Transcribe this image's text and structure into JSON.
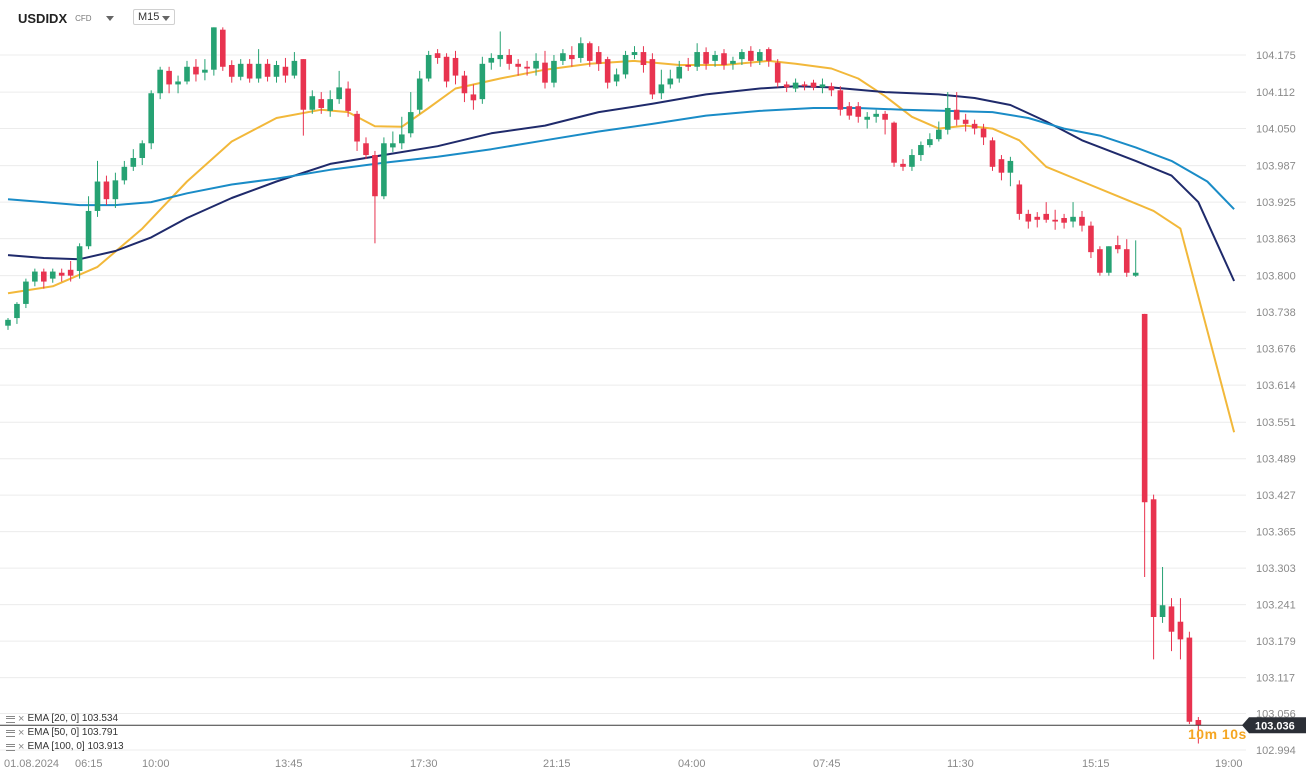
{
  "header": {
    "symbol": "USDIDX",
    "instrument_type": "CFD",
    "timeframe": "M15"
  },
  "legend": [
    {
      "label": "EMA [20, 0] 103.534",
      "color": "#f2b83a"
    },
    {
      "label": "EMA [50, 0] 103.791",
      "color": "#1f2a6b"
    },
    {
      "label": "EMA [100, 0] 103.913",
      "color": "#1a8cc7"
    }
  ],
  "countdown": "10m 10s",
  "colors": {
    "up": "#26a273",
    "down": "#e8334f",
    "price_tag_bg": "#2b2f36",
    "grid": "#ececec",
    "axis_text": "#8a8a8a"
  },
  "chart_data": {
    "type": "candlestick",
    "title": "USDIDX",
    "timeframe": "M15",
    "y_axis": {
      "ticks": [
        "104.175",
        "104.112",
        "104.050",
        "103.987",
        "103.925",
        "103.863",
        "103.800",
        "103.738",
        "103.676",
        "103.614",
        "103.551",
        "103.489",
        "103.427",
        "103.365",
        "103.303",
        "103.241",
        "103.179",
        "103.117",
        "103.056",
        "102.994"
      ],
      "range": [
        102.985,
        104.225
      ]
    },
    "x_axis": {
      "ticks": [
        "01.08.2024",
        "06:15",
        "10:00",
        "13:45",
        "17:30",
        "21:15",
        "04:00",
        "07:45",
        "11:30",
        "15:15",
        "19:00"
      ]
    },
    "last_price": "103.036",
    "candles": [
      [
        103.715,
        103.725,
        103.708,
        103.728
      ],
      [
        103.728,
        103.752,
        103.718,
        103.755
      ],
      [
        103.752,
        103.79,
        103.745,
        103.795
      ],
      [
        103.79,
        103.807,
        103.782,
        103.812
      ],
      [
        103.807,
        103.79,
        103.778,
        103.812
      ],
      [
        103.795,
        103.807,
        103.788,
        103.812
      ],
      [
        103.805,
        103.8,
        103.79,
        103.812
      ],
      [
        103.81,
        103.8,
        103.79,
        103.825
      ],
      [
        103.808,
        103.85,
        103.795,
        103.855
      ],
      [
        103.85,
        103.91,
        103.845,
        103.935
      ],
      [
        103.91,
        103.96,
        103.9,
        103.995
      ],
      [
        103.96,
        103.93,
        103.92,
        103.97
      ],
      [
        103.93,
        103.962,
        103.915,
        103.975
      ],
      [
        103.962,
        103.985,
        103.955,
        103.995
      ],
      [
        103.985,
        104.0,
        103.978,
        104.015
      ],
      [
        104.0,
        104.025,
        103.988,
        104.03
      ],
      [
        104.025,
        104.11,
        104.015,
        104.115
      ],
      [
        104.11,
        104.15,
        104.1,
        104.155
      ],
      [
        104.148,
        104.125,
        104.11,
        104.155
      ],
      [
        104.125,
        104.13,
        104.11,
        104.14
      ],
      [
        104.13,
        104.155,
        104.125,
        104.165
      ],
      [
        104.155,
        104.142,
        104.13,
        104.168
      ],
      [
        104.145,
        104.15,
        104.132,
        104.168
      ],
      [
        104.15,
        104.222,
        104.14,
        104.222
      ],
      [
        104.218,
        104.155,
        104.148,
        104.222
      ],
      [
        104.158,
        104.138,
        104.128,
        104.166
      ],
      [
        104.138,
        104.16,
        104.132,
        104.168
      ],
      [
        104.16,
        104.135,
        104.128,
        104.168
      ],
      [
        104.135,
        104.16,
        104.128,
        104.185
      ],
      [
        104.16,
        104.138,
        104.13,
        104.168
      ],
      [
        104.138,
        104.158,
        104.128,
        104.165
      ],
      [
        104.155,
        104.14,
        104.128,
        104.17
      ],
      [
        104.14,
        104.165,
        104.135,
        104.18
      ],
      [
        104.168,
        104.082,
        104.038,
        104.168
      ],
      [
        104.082,
        104.105,
        104.075,
        104.115
      ],
      [
        104.1,
        104.085,
        104.075,
        104.112
      ],
      [
        104.08,
        104.1,
        104.07,
        104.115
      ],
      [
        104.1,
        104.12,
        104.092,
        104.148
      ],
      [
        104.118,
        104.08,
        104.07,
        104.13
      ],
      [
        104.075,
        104.028,
        104.012,
        104.08
      ],
      [
        104.025,
        104.005,
        103.998,
        104.035
      ],
      [
        104.005,
        103.935,
        103.855,
        104.012
      ],
      [
        103.935,
        104.025,
        103.93,
        104.035
      ],
      [
        104.018,
        104.025,
        104.01,
        104.045
      ],
      [
        104.025,
        104.04,
        104.015,
        104.07
      ],
      [
        104.042,
        104.078,
        104.035,
        104.112
      ],
      [
        104.082,
        104.135,
        104.075,
        104.148
      ],
      [
        104.135,
        104.175,
        104.13,
        104.182
      ],
      [
        104.178,
        104.17,
        104.16,
        104.185
      ],
      [
        104.172,
        104.13,
        104.12,
        104.178
      ],
      [
        104.17,
        104.14,
        104.125,
        104.182
      ],
      [
        104.14,
        104.11,
        104.095,
        104.148
      ],
      [
        104.108,
        104.098,
        104.082,
        104.125
      ],
      [
        104.1,
        104.16,
        104.092,
        104.172
      ],
      [
        104.162,
        104.17,
        104.15,
        104.178
      ],
      [
        104.168,
        104.175,
        104.155,
        104.215
      ],
      [
        104.175,
        104.16,
        104.15,
        104.185
      ],
      [
        104.16,
        104.155,
        104.14,
        104.168
      ],
      [
        104.155,
        104.152,
        104.14,
        104.165
      ],
      [
        104.152,
        104.165,
        104.14,
        104.178
      ],
      [
        104.162,
        104.128,
        104.118,
        104.182
      ],
      [
        104.128,
        104.165,
        104.12,
        104.175
      ],
      [
        104.165,
        104.178,
        104.158,
        104.185
      ],
      [
        104.175,
        104.168,
        104.155,
        104.19
      ],
      [
        104.17,
        104.195,
        104.162,
        104.205
      ],
      [
        104.195,
        104.165,
        104.155,
        104.198
      ],
      [
        104.18,
        104.16,
        104.148,
        104.19
      ],
      [
        104.168,
        104.128,
        104.118,
        104.172
      ],
      [
        104.13,
        104.142,
        104.122,
        104.152
      ],
      [
        104.142,
        104.175,
        104.135,
        104.182
      ],
      [
        104.175,
        104.18,
        104.168,
        104.19
      ],
      [
        104.18,
        104.158,
        104.145,
        104.19
      ],
      [
        104.168,
        104.108,
        104.1,
        104.178
      ],
      [
        104.11,
        104.125,
        104.1,
        104.15
      ],
      [
        104.125,
        104.135,
        104.118,
        104.15
      ],
      [
        104.135,
        104.155,
        104.128,
        104.165
      ],
      [
        104.158,
        104.155,
        104.148,
        104.17
      ],
      [
        104.155,
        104.18,
        104.148,
        104.195
      ],
      [
        104.18,
        104.16,
        104.15,
        104.188
      ],
      [
        104.165,
        104.175,
        104.155,
        104.182
      ],
      [
        104.178,
        104.158,
        104.15,
        104.185
      ],
      [
        104.16,
        104.165,
        104.15,
        104.172
      ],
      [
        104.168,
        104.18,
        104.158,
        104.185
      ],
      [
        104.182,
        104.165,
        104.155,
        104.19
      ],
      [
        104.165,
        104.18,
        104.158,
        104.185
      ],
      [
        104.185,
        104.165,
        104.155,
        104.188
      ],
      [
        104.162,
        104.128,
        104.12,
        104.168
      ],
      [
        104.125,
        104.12,
        104.112,
        104.13
      ],
      [
        104.118,
        104.128,
        104.112,
        104.135
      ],
      [
        104.125,
        104.122,
        104.115,
        104.13
      ],
      [
        104.128,
        104.12,
        104.115,
        104.133
      ],
      [
        104.12,
        104.125,
        104.11,
        104.135
      ],
      [
        104.122,
        104.115,
        104.105,
        104.128
      ],
      [
        104.115,
        104.082,
        104.072,
        104.122
      ],
      [
        104.088,
        104.072,
        104.065,
        104.095
      ],
      [
        104.088,
        104.07,
        104.06,
        104.095
      ],
      [
        104.065,
        104.07,
        104.05,
        104.078
      ],
      [
        104.07,
        104.075,
        104.06,
        104.082
      ],
      [
        104.075,
        104.065,
        104.04,
        104.08
      ],
      [
        104.06,
        103.992,
        103.985,
        104.062
      ],
      [
        103.99,
        103.985,
        103.978,
        103.998
      ],
      [
        103.985,
        104.005,
        103.978,
        104.015
      ],
      [
        104.005,
        104.022,
        103.995,
        104.028
      ],
      [
        104.022,
        104.032,
        104.018,
        104.042
      ],
      [
        104.032,
        104.048,
        104.028,
        104.062
      ],
      [
        104.048,
        104.085,
        104.04,
        104.112
      ],
      [
        104.082,
        104.065,
        104.055,
        104.112
      ],
      [
        104.065,
        104.058,
        104.045,
        104.075
      ],
      [
        104.058,
        104.05,
        104.04,
        104.065
      ],
      [
        104.05,
        104.035,
        104.022,
        104.058
      ],
      [
        104.03,
        103.985,
        103.978,
        104.035
      ],
      [
        103.998,
        103.975,
        103.962,
        104.005
      ],
      [
        103.975,
        103.995,
        103.952,
        104.002
      ],
      [
        103.955,
        103.905,
        103.895,
        103.962
      ],
      [
        103.905,
        103.892,
        103.88,
        103.912
      ],
      [
        103.9,
        103.895,
        103.882,
        103.908
      ],
      [
        103.905,
        103.895,
        103.89,
        103.925
      ],
      [
        103.895,
        103.892,
        103.878,
        103.912
      ],
      [
        103.898,
        103.89,
        103.88,
        103.905
      ],
      [
        103.892,
        103.9,
        103.882,
        103.925
      ],
      [
        103.9,
        103.885,
        103.875,
        103.91
      ],
      [
        103.885,
        103.84,
        103.83,
        103.892
      ],
      [
        103.845,
        103.805,
        103.8,
        103.85
      ],
      [
        103.805,
        103.85,
        103.8,
        103.85
      ],
      [
        103.852,
        103.845,
        103.838,
        103.868
      ],
      [
        103.845,
        103.805,
        103.798,
        103.862
      ],
      [
        103.8,
        103.805,
        103.798,
        103.86
      ],
      [
        103.735,
        103.415,
        103.288,
        103.735
      ],
      [
        103.42,
        103.22,
        103.148,
        103.428
      ],
      [
        103.22,
        103.24,
        103.21,
        103.305
      ],
      [
        103.238,
        103.195,
        103.162,
        103.252
      ],
      [
        103.212,
        103.182,
        103.148,
        103.252
      ],
      [
        103.185,
        103.042,
        103.038,
        103.195
      ],
      [
        103.045,
        103.036,
        103.005,
        103.05
      ]
    ],
    "series": [
      {
        "name": "EMA [20, 0] 103.534",
        "value": 103.534,
        "color": "#f2b83a",
        "points": [
          [
            0,
            103.77
          ],
          [
            5,
            103.782
          ],
          [
            10,
            103.815
          ],
          [
            15,
            103.88
          ],
          [
            20,
            103.96
          ],
          [
            25,
            104.028
          ],
          [
            30,
            104.068
          ],
          [
            35,
            104.082
          ],
          [
            38,
            104.078
          ],
          [
            41,
            104.054
          ],
          [
            44,
            104.053
          ],
          [
            47,
            104.085
          ],
          [
            50,
            104.118
          ],
          [
            55,
            104.135
          ],
          [
            60,
            104.15
          ],
          [
            65,
            104.16
          ],
          [
            70,
            104.165
          ],
          [
            75,
            104.158
          ],
          [
            80,
            104.158
          ],
          [
            85,
            104.165
          ],
          [
            88,
            104.16
          ],
          [
            92,
            104.152
          ],
          [
            95,
            104.135
          ],
          [
            98,
            104.105
          ],
          [
            101,
            104.07
          ],
          [
            104,
            104.05
          ],
          [
            107,
            104.055
          ],
          [
            110,
            104.05
          ],
          [
            113,
            104.03
          ],
          [
            116,
            103.985
          ],
          [
            120,
            103.96
          ],
          [
            124,
            103.935
          ],
          [
            128,
            103.91
          ],
          [
            131,
            103.88
          ],
          [
            137,
            103.534
          ]
        ]
      },
      {
        "name": "EMA [50, 0] 103.791",
        "value": 103.791,
        "color": "#1f2a6b",
        "points": [
          [
            0,
            103.835
          ],
          [
            4,
            103.83
          ],
          [
            8,
            103.828
          ],
          [
            12,
            103.842
          ],
          [
            16,
            103.865
          ],
          [
            20,
            103.898
          ],
          [
            25,
            103.932
          ],
          [
            30,
            103.96
          ],
          [
            36,
            103.99
          ],
          [
            42,
            104.005
          ],
          [
            48,
            104.02
          ],
          [
            54,
            104.042
          ],
          [
            60,
            104.055
          ],
          [
            66,
            104.078
          ],
          [
            72,
            104.092
          ],
          [
            78,
            104.108
          ],
          [
            84,
            104.118
          ],
          [
            88,
            104.122
          ],
          [
            92,
            104.12
          ],
          [
            98,
            104.112
          ],
          [
            104,
            104.108
          ],
          [
            108,
            104.102
          ],
          [
            112,
            104.09
          ],
          [
            116,
            104.062
          ],
          [
            120,
            104.03
          ],
          [
            126,
            103.995
          ],
          [
            130,
            103.97
          ],
          [
            133,
            103.925
          ],
          [
            137,
            103.791
          ]
        ]
      },
      {
        "name": "EMA [100, 0] 103.913",
        "value": 103.913,
        "color": "#1a8cc7",
        "points": [
          [
            0,
            103.93
          ],
          [
            4,
            103.925
          ],
          [
            8,
            103.92
          ],
          [
            12,
            103.92
          ],
          [
            16,
            103.925
          ],
          [
            20,
            103.94
          ],
          [
            25,
            103.955
          ],
          [
            30,
            103.965
          ],
          [
            36,
            103.98
          ],
          [
            42,
            103.992
          ],
          [
            48,
            104.002
          ],
          [
            54,
            104.015
          ],
          [
            60,
            104.03
          ],
          [
            66,
            104.045
          ],
          [
            72,
            104.058
          ],
          [
            78,
            104.072
          ],
          [
            84,
            104.08
          ],
          [
            90,
            104.085
          ],
          [
            95,
            104.085
          ],
          [
            100,
            104.082
          ],
          [
            105,
            104.08
          ],
          [
            110,
            104.078
          ],
          [
            114,
            104.068
          ],
          [
            118,
            104.05
          ],
          [
            122,
            104.038
          ],
          [
            126,
            104.018
          ],
          [
            130,
            103.995
          ],
          [
            134,
            103.96
          ],
          [
            137,
            103.913
          ]
        ]
      }
    ]
  }
}
